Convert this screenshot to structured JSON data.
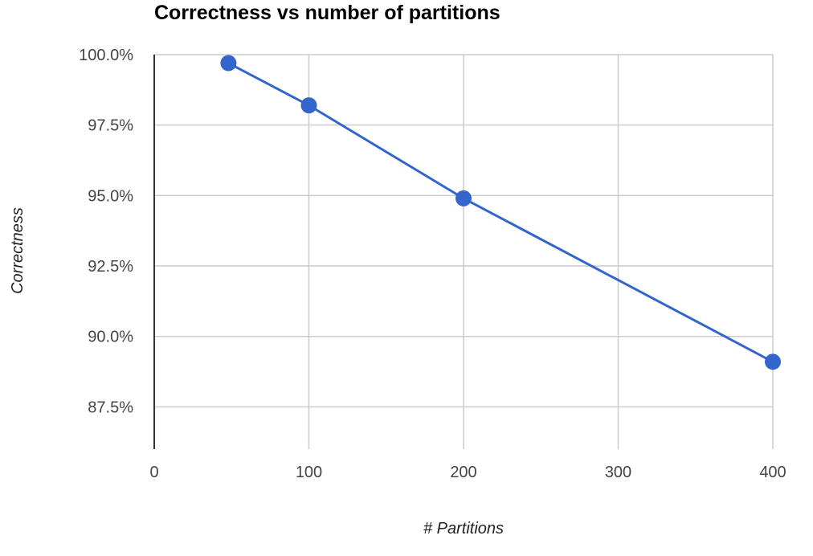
{
  "chart_data": {
    "type": "line",
    "title": "Correctness vs number of partitions",
    "xlabel": "# Partitions",
    "ylabel": "Correctness",
    "xlim": [
      0,
      400
    ],
    "ylim": [
      86,
      100
    ],
    "x_ticks": [
      0,
      100,
      200,
      300,
      400
    ],
    "x_tick_labels": [
      "0",
      "100",
      "200",
      "300",
      "400"
    ],
    "y_ticks": [
      87.5,
      90,
      92.5,
      95,
      97.5,
      100
    ],
    "y_tick_labels": [
      "87.5%",
      "90.0%",
      "92.5%",
      "95.0%",
      "97.5%",
      "100.0%"
    ],
    "grid": true,
    "series": [
      {
        "color": "#3366cc",
        "x": [
          48,
          100,
          200,
          400
        ],
        "y": [
          99.7,
          98.2,
          94.9,
          89.1
        ]
      }
    ]
  }
}
